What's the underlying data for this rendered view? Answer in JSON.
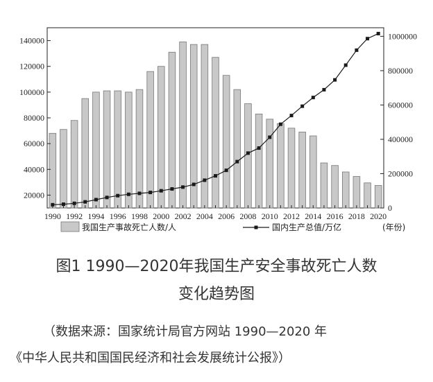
{
  "chart_data": {
    "type": "bar+line",
    "categories": [
      "1990",
      "1991",
      "1992",
      "1993",
      "1994",
      "1995",
      "1996",
      "1997",
      "1998",
      "1999",
      "2000",
      "2001",
      "2002",
      "2003",
      "2004",
      "2005",
      "2006",
      "2007",
      "2008",
      "2009",
      "2010",
      "2011",
      "2012",
      "2013",
      "2014",
      "2015",
      "2016",
      "2017",
      "2018",
      "2019",
      "2020"
    ],
    "x_tick_labels": [
      "1990",
      "1992",
      "1994",
      "1996",
      "1998",
      "2000",
      "2002",
      "2004",
      "2006",
      "2008",
      "2010",
      "2012",
      "2014",
      "2016",
      "2018",
      "2020"
    ],
    "series": [
      {
        "name": "我国生产事故死亡人数/人",
        "kind": "bar",
        "axis": "left",
        "color": "#c8c8c8",
        "values": [
          68000,
          71000,
          78000,
          95000,
          100000,
          101000,
          101000,
          100000,
          102000,
          116000,
          120000,
          131000,
          139000,
          137000,
          137000,
          127000,
          113000,
          102000,
          91000,
          83000,
          79000,
          75500,
          72000,
          69000,
          66000,
          45000,
          43000,
          38000,
          34500,
          29500,
          27500
        ]
      },
      {
        "name": "国内生产总值/万亿",
        "kind": "line",
        "axis": "right",
        "color": "#1a1a1a",
        "values": [
          18900,
          22000,
          27000,
          35700,
          48600,
          61300,
          71800,
          79700,
          85200,
          90600,
          100300,
          111000,
          121700,
          137400,
          161800,
          187300,
          219400,
          270100,
          319500,
          349100,
          412100,
          487900,
          538600,
          592900,
          643600,
          689000,
          746300,
          832000,
          919300,
          986500,
          1015900
        ]
      }
    ],
    "left_axis": {
      "ylim": [
        10000,
        150000
      ],
      "ticks": [
        "20000",
        "40000",
        "60000",
        "80000",
        "100000",
        "120000",
        "140000"
      ]
    },
    "right_axis": {
      "ylim": [
        0,
        1050000
      ],
      "ticks": [
        "0",
        "200000",
        "400000",
        "600000",
        "800000",
        "1000000"
      ]
    },
    "x_unit_label": "(年份)",
    "legend_placement": "bottom"
  },
  "caption": {
    "line1": "图1 1990—2020年我国生产安全事故死亡人数",
    "line2": "变化趋势图"
  },
  "source": {
    "line1": "（数据来源：国家统计局官方网站 1990—2020 年",
    "line2": "《中华人民共和国国民经济和社会发展统计公报》）"
  }
}
